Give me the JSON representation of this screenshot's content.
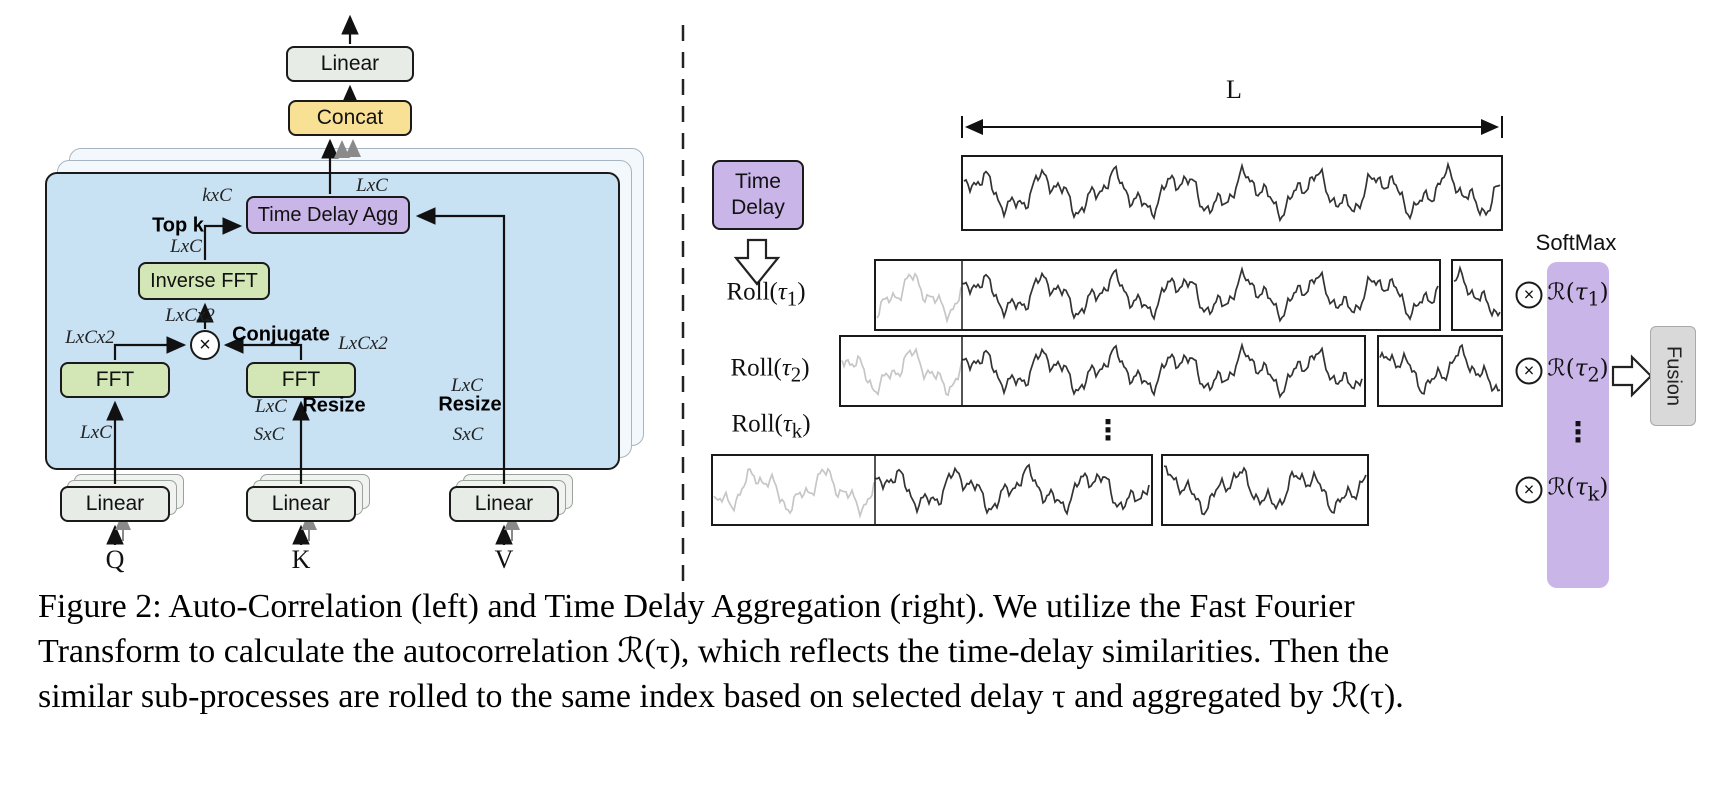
{
  "left": {
    "linear_top": "Linear",
    "concat": "Concat",
    "time_delay_agg": "Time Delay Agg",
    "inverse_fft": "Inverse FFT",
    "fft_q": "FFT",
    "fft_k": "FFT",
    "multiply": "×",
    "top_k": "Top k",
    "conjugate": "Conjugate",
    "resize_k": "Resize",
    "resize_v": "Resize",
    "kxc": "kxC",
    "lxc_out": "LxC",
    "lxc_ifft": "LxC",
    "lxcx2_mult": "LxCx2",
    "lxcx2_q": "LxCx2",
    "lxcx2_k": "LxCx2",
    "lxc_q": "LxC",
    "lxc_k": "LxC",
    "sxc_k": "SxC",
    "lxc_v": "LxC",
    "sxc_v": "SxC",
    "linear_q": "Linear",
    "linear_k": "Linear",
    "linear_v": "Linear",
    "q": "Q",
    "k": "K",
    "v": "V"
  },
  "right": {
    "time_delay_line1": "Time",
    "time_delay_line2": "Delay",
    "length_label": "L",
    "softmax": "SoftMax",
    "fusion": "Fusion",
    "multiply": "×",
    "dots": "⋮",
    "rows": [
      {
        "roll_word": "Roll(",
        "r_word": "ℛ(",
        "tau": "τ",
        "sub": "1",
        "close": ")"
      },
      {
        "roll_word": "Roll(",
        "r_word": "ℛ(",
        "tau": "τ",
        "sub": "2",
        "close": ")"
      },
      {
        "roll_word": "Roll(",
        "r_word": "ℛ(",
        "tau": "τ",
        "sub": "k",
        "close": ")"
      }
    ]
  },
  "caption": {
    "line1": "Figure 2: Auto-Correlation (left) and Time Delay Aggregation (right). We utilize the Fast Fourier",
    "line2": "Transform to calculate the autocorrelation ℛ(τ), which reflects the time-delay similarities. Then the",
    "line3": "similar sub-processes are rolled to the same index based on selected delay τ and aggregated by ℛ(τ)."
  },
  "colors": {
    "blue": "#c8e2f4",
    "green": "#d3e6b5",
    "purple": "#c9b5e8",
    "yellow": "#f8e094",
    "graybox": "#e7ece7",
    "fusion": "#d9d9d9",
    "wave_dark": "#333333",
    "wave_faded": "#c6c6c6"
  }
}
